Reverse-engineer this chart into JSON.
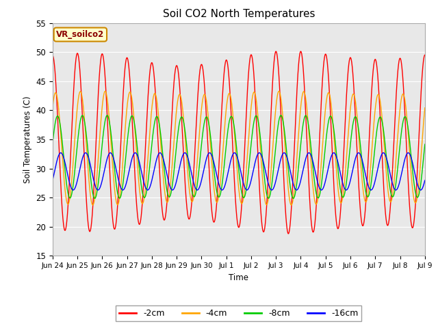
{
  "title": "Soil CO2 North Temperatures",
  "ylabel": "Soil Temperatures (C)",
  "xlabel": "Time",
  "legend_label": "VR_soilco2",
  "ylim": [
    15,
    55
  ],
  "line_colors": {
    "-2cm": "#FF0000",
    "-4cm": "#FFA500",
    "-8cm": "#00CC00",
    "-16cm": "#0000FF"
  },
  "bg_color": "#E8E8E8",
  "tick_labels": [
    "Jun 24",
    "Jun 25",
    "Jun 26",
    "Jun 27",
    "Jun 28",
    "Jun 29",
    "Jun 30",
    "Jul 1",
    "Jul 2",
    "Jul 3",
    "Jul 4",
    "Jul 5",
    "Jul 6",
    "Jul 7",
    "Jul 8",
    "Jul 9"
  ],
  "legend_box_color": "#FFFFCC",
  "legend_box_edge": "#CC8800",
  "amp_2cm": 15.0,
  "mean_2cm": 34.5,
  "phase_2cm": 0.25,
  "amp_4cm": 9.5,
  "mean_4cm": 33.5,
  "phase_4cm": 0.13,
  "amp_8cm": 7.0,
  "mean_8cm": 32.0,
  "phase_8cm": 0.05,
  "amp_16cm": 3.2,
  "mean_16cm": 29.5,
  "phase_16cm": -0.08
}
